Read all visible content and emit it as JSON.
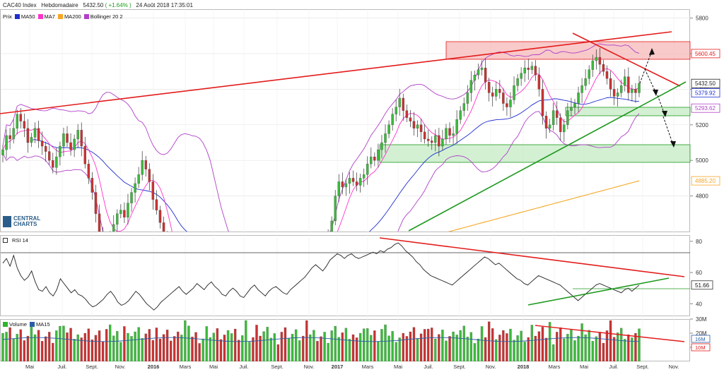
{
  "header": {
    "instrument": "CAC40 Index",
    "period": "Hebdomadaire",
    "last": "5432.50",
    "change": "( +1.64% )",
    "datetime": "24 Août 2018 17:35:01"
  },
  "legend": {
    "prix": "Prix",
    "items": [
      {
        "label": "MA50",
        "color": "#1f2fcc"
      },
      {
        "label": "MA7",
        "color": "#ff33cc"
      },
      {
        "label": "MA200",
        "color": "#f5a623"
      },
      {
        "label": "Bollinger 20 2",
        "color": "#b040c8"
      }
    ]
  },
  "logo": {
    "line1": "CENTRAL",
    "line2": "CHARTS"
  },
  "rsi_legend": {
    "label": "RSI 14"
  },
  "volume_legend": {
    "items": [
      {
        "label": "Volume",
        "color": "#2db52d"
      },
      {
        "label": "MA15",
        "color": "#2a5da8"
      }
    ]
  },
  "colors": {
    "up": "#3cb93c",
    "down": "#c83232",
    "trend_red": "#e31b1b",
    "trend_green": "#1f9a1f",
    "zone_red": "#f7b8b8",
    "zone_green": "#c8ecc8"
  },
  "chart_data": [
    {
      "type": "candlestick",
      "panel": "price",
      "yaxis_ticks": [
        4800,
        5000,
        5200,
        5400,
        5600,
        5800
      ],
      "ylim": [
        4600,
        5850
      ],
      "xaxis_ticks": [
        "Mai",
        "Juil.",
        "Sept.",
        "Nov.",
        "2016",
        "Mars",
        "Mai",
        "Juil.",
        "Sept.",
        "Nov.",
        "2017",
        "Mars",
        "Mai",
        "Juil.",
        "Sept.",
        "Nov.",
        "2018",
        "Mars",
        "Mai",
        "Juil.",
        "Sept.",
        "Nov."
      ],
      "price_labels": [
        {
          "value": 5600.45,
          "text": "5600.45",
          "color": "#e31b1b"
        },
        {
          "value": 5432.5,
          "text": "5432.50",
          "color": "#222222"
        },
        {
          "value": 5379.92,
          "text": "5379.92",
          "color": "#1f2fcc"
        },
        {
          "value": 5293.62,
          "text": "5293.62",
          "color": "#b040c8"
        },
        {
          "value": 4885.2,
          "text": "4885.20",
          "color": "#f5a623"
        }
      ],
      "close": [
        5060,
        5140,
        5120,
        5180,
        5260,
        5220,
        5180,
        5100,
        5130,
        5180,
        5110,
        5080,
        5050,
        5000,
        4960,
        5020,
        5080,
        5150,
        5100,
        5060,
        5120,
        5170,
        5080,
        4980,
        4900,
        4820,
        4700,
        4600,
        4520,
        4480,
        4560,
        4640,
        4700,
        4720,
        4680,
        4760,
        4820,
        4870,
        4920,
        5000,
        4950,
        4880,
        4780,
        4720,
        4650,
        4560,
        4480,
        4350,
        4250,
        4200,
        4280,
        4350,
        4420,
        4380,
        4320,
        4260,
        4300,
        4380,
        4420,
        4480,
        4420,
        4350,
        4300,
        4380,
        4450,
        4400,
        4360,
        4420,
        4460,
        4480,
        4430,
        4400,
        4360,
        4380,
        4420,
        4460,
        4480,
        4450,
        4430,
        4410,
        4420,
        4450,
        4480,
        4520,
        4490,
        4470,
        4500,
        4530,
        4480,
        4460,
        4500,
        4560,
        4660,
        4800,
        4880,
        4850,
        4870,
        4900,
        4880,
        4860,
        4900,
        4920,
        4980,
        5020,
        5000,
        5060,
        5100,
        5150,
        5200,
        5260,
        5300,
        5350,
        5280,
        5240,
        5220,
        5180,
        5200,
        5160,
        5120,
        5110,
        5100,
        5140,
        5080,
        5120,
        5180,
        5140,
        5150,
        5230,
        5280,
        5320,
        5380,
        5450,
        5480,
        5510,
        5520,
        5440,
        5380,
        5360,
        5400,
        5380,
        5320,
        5300,
        5340,
        5420,
        5460,
        5490,
        5520,
        5510,
        5530,
        5480,
        5400,
        5250,
        5180,
        5200,
        5280,
        5240,
        5160,
        5200,
        5280,
        5300,
        5320,
        5380,
        5420,
        5460,
        5510,
        5560,
        5580,
        5540,
        5500,
        5460,
        5400,
        5360,
        5380,
        5420,
        5470,
        5380,
        5400,
        5380,
        5432
      ],
      "series": [
        {
          "name": "MA50"
        },
        {
          "name": "MA7"
        },
        {
          "name": "MA200"
        },
        {
          "name": "Bollinger 20 2"
        }
      ]
    },
    {
      "type": "line",
      "panel": "rsi",
      "name": "RSI 14",
      "yaxis_ticks": [
        40,
        60,
        80
      ],
      "ylim": [
        32,
        84
      ],
      "last_label": "51.66",
      "values": [
        66,
        69,
        64,
        71,
        63,
        58,
        55,
        57,
        61,
        54,
        49,
        48,
        51,
        47,
        45,
        49,
        56,
        53,
        50,
        47,
        49,
        46,
        45,
        43,
        40,
        38,
        39,
        41,
        43,
        46,
        48,
        45,
        41,
        39,
        40,
        42,
        45,
        48,
        46,
        43,
        40,
        38,
        36,
        38,
        41,
        43,
        45,
        47,
        49,
        51,
        48,
        46,
        48,
        50,
        53,
        51,
        49,
        52,
        54,
        51,
        49,
        46,
        45,
        48,
        50,
        48,
        45,
        44,
        47,
        50,
        52,
        49,
        47,
        45,
        48,
        50,
        51,
        49,
        47,
        46,
        49,
        51,
        53,
        55,
        57,
        60,
        63,
        65,
        63,
        61,
        64,
        68,
        70,
        72,
        71,
        69,
        71,
        72,
        70,
        69,
        70,
        71,
        72,
        73,
        72,
        74,
        73,
        75,
        76,
        78,
        79,
        77,
        74,
        72,
        70,
        67,
        65,
        62,
        60,
        58,
        57,
        56,
        55,
        54,
        53,
        52,
        54,
        56,
        58,
        60,
        62,
        64,
        66,
        68,
        70,
        69,
        67,
        65,
        66,
        64,
        62,
        60,
        58,
        56,
        55,
        53,
        52,
        54,
        56,
        58,
        57,
        56,
        55,
        54,
        53,
        52,
        50,
        48,
        46,
        44,
        42,
        44,
        46,
        48,
        50,
        52,
        53,
        52,
        51,
        50,
        49,
        48,
        47,
        49,
        50,
        48,
        50,
        52
      ]
    },
    {
      "type": "bar",
      "panel": "volume",
      "yaxis_ticks": [
        "30M",
        "20M",
        "10M"
      ],
      "labels": [
        {
          "text": "16M",
          "color": "#2a5da8"
        },
        {
          "text": "10M",
          "color": "#e31b1b"
        }
      ],
      "ylim": [
        0,
        30
      ]
    }
  ]
}
